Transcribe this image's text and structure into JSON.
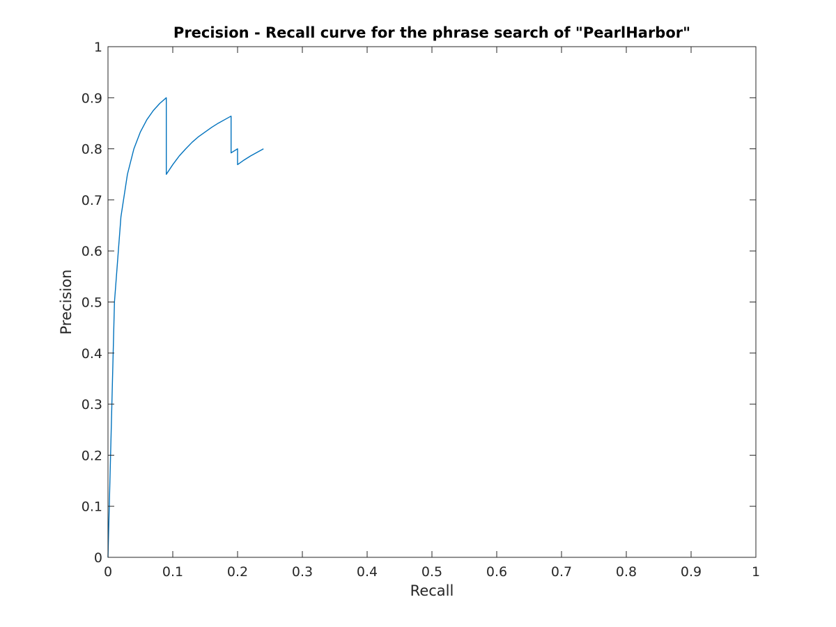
{
  "chart_data": {
    "type": "line",
    "title": "Precision - Recall curve for the phrase search of \"PearlHarbor\"",
    "xlabel": "Recall",
    "ylabel": "Precision",
    "xlim": [
      0,
      1
    ],
    "ylim": [
      0,
      1
    ],
    "xticks": [
      "0",
      "0.1",
      "0.2",
      "0.3",
      "0.4",
      "0.5",
      "0.6",
      "0.7",
      "0.8",
      "0.9",
      "1"
    ],
    "yticks": [
      "0",
      "0.1",
      "0.2",
      "0.3",
      "0.4",
      "0.5",
      "0.6",
      "0.7",
      "0.8",
      "0.9",
      "1"
    ],
    "grid": false,
    "box": true,
    "series": [
      {
        "color": "#0072bd",
        "x": [
          0,
          0.01,
          0.02,
          0.03,
          0.04,
          0.05,
          0.06,
          0.07,
          0.08,
          0.09,
          0.09,
          0.1,
          0.11,
          0.12,
          0.13,
          0.14,
          0.15,
          0.16,
          0.17,
          0.18,
          0.19,
          0.19,
          0.2,
          0.2,
          0.21,
          0.22,
          0.23,
          0.24
        ],
        "y": [
          0,
          0.5,
          0.667,
          0.75,
          0.8,
          0.833,
          0.857,
          0.875,
          0.889,
          0.9,
          0.75,
          0.769,
          0.786,
          0.8,
          0.813,
          0.824,
          0.833,
          0.842,
          0.85,
          0.857,
          0.864,
          0.792,
          0.8,
          0.769,
          0.778,
          0.786,
          0.793,
          0.8
        ]
      }
    ]
  }
}
